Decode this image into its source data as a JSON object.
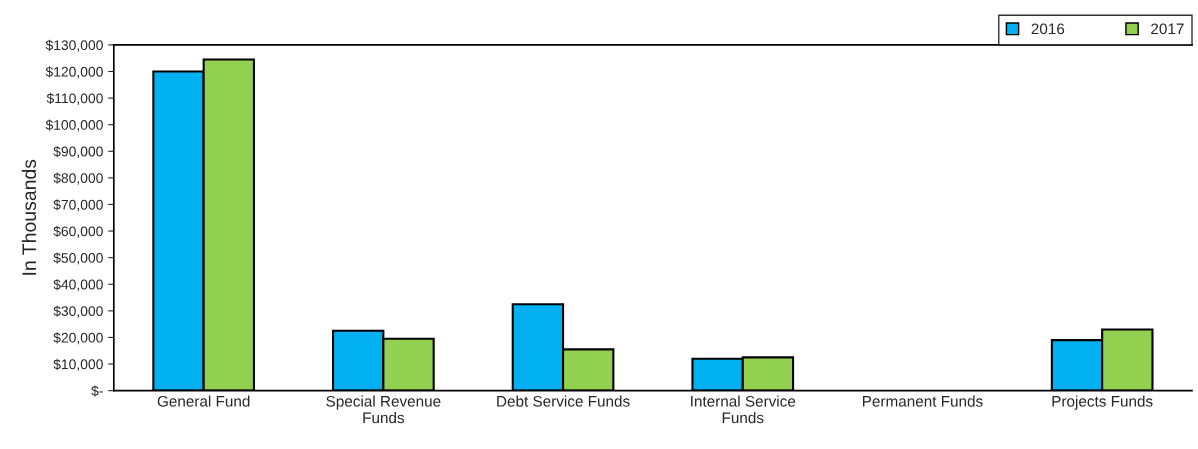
{
  "chart_data": {
    "type": "bar",
    "ylabel": "In Thousands",
    "categories": [
      "General Fund",
      "Special Revenue\nFunds",
      "Debt Service Funds",
      "Internal Service\nFunds",
      "Permanent Funds",
      "Projects Funds"
    ],
    "series": [
      {
        "name": "2016",
        "color": "#00b0f0",
        "values": [
          120000,
          22500,
          32500,
          12000,
          0,
          19000
        ]
      },
      {
        "name": "2017",
        "color": "#92d050",
        "values": [
          124500,
          19500,
          15500,
          12500,
          0,
          23000
        ]
      }
    ],
    "ylim": [
      0,
      130000
    ],
    "yticks": [
      {
        "value": 0,
        "label": "$-"
      },
      {
        "value": 10000,
        "label": "$10,000"
      },
      {
        "value": 20000,
        "label": "$20,000"
      },
      {
        "value": 30000,
        "label": "$30,000"
      },
      {
        "value": 40000,
        "label": "$40,000"
      },
      {
        "value": 50000,
        "label": "$50,000"
      },
      {
        "value": 60000,
        "label": "$60,000"
      },
      {
        "value": 70000,
        "label": "$70,000"
      },
      {
        "value": 80000,
        "label": "$80,000"
      },
      {
        "value": 90000,
        "label": "$90,000"
      },
      {
        "value": 100000,
        "label": "$100,000"
      },
      {
        "value": 110000,
        "label": "$110,000"
      },
      {
        "value": 120000,
        "label": "$120,000"
      },
      {
        "value": 130000,
        "label": "$130,000"
      }
    ],
    "grid": false,
    "legend": "top right"
  }
}
